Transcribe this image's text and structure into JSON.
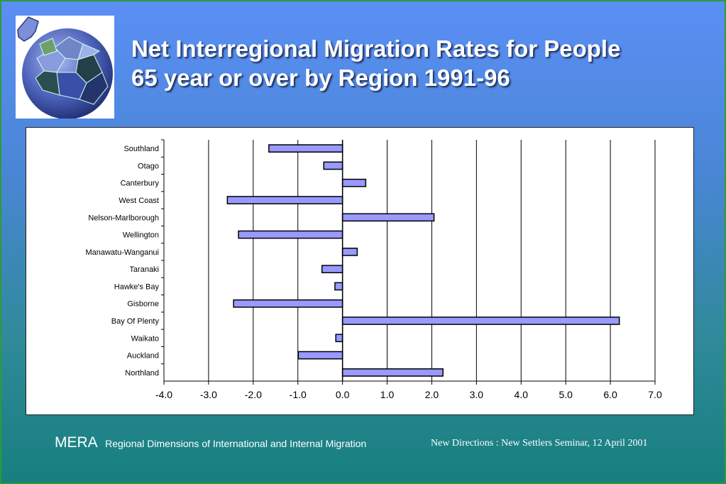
{
  "slide": {
    "title_line1": "Net Interregional Migration Rates for People",
    "title_line2": "65 year or over by Region 1991-96"
  },
  "footer": {
    "brand": "MERA",
    "subtitle": "Regional Dimensions of International and Internal Migration",
    "right": "New Directions : New Settlers Seminar, 12 April 2001"
  },
  "logo": {
    "icon": "globe-jigsaw-icon"
  },
  "colors": {
    "bar_fill": "#9999ff",
    "bar_stroke": "#000000",
    "accent_green": "#2e9a3a"
  },
  "chart_data": {
    "type": "bar",
    "orientation": "horizontal",
    "categories": [
      "Southland",
      "Otago",
      "Canterbury",
      "West Coast",
      "Nelson-Marlborough",
      "Wellington",
      "Manawatu-Wanganui",
      "Taranaki",
      "Hawke's Bay",
      "Gisborne",
      "Bay Of Plenty",
      "Waikato",
      "Auckland",
      "Northland"
    ],
    "values": [
      -1.65,
      -0.42,
      0.52,
      -2.58,
      2.05,
      -2.33,
      0.33,
      -0.46,
      -0.17,
      -2.44,
      6.2,
      -0.15,
      -0.99,
      2.25
    ],
    "xlim": [
      -4.0,
      7.0
    ],
    "xticks": [
      "-4.0",
      "-3.0",
      "-2.0",
      "-1.0",
      "0.0",
      "1.0",
      "2.0",
      "3.0",
      "4.0",
      "5.0",
      "6.0",
      "7.0"
    ],
    "grid": "vertical",
    "legend": "none"
  }
}
